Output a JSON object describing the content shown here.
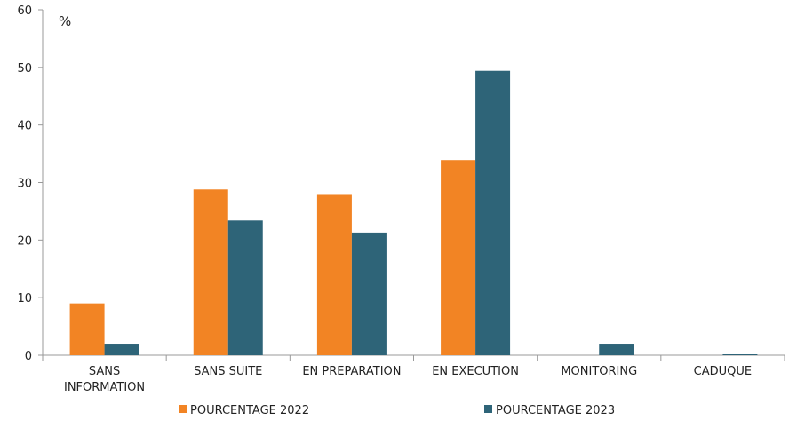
{
  "chart_data": {
    "type": "bar",
    "unit_label": "%",
    "categories": [
      [
        "SANS",
        "INFORMATION"
      ],
      [
        "SANS SUITE"
      ],
      [
        "EN PREPARATION"
      ],
      [
        "EN EXECUTION"
      ],
      [
        "MONITORING"
      ],
      [
        "CADUQUE"
      ]
    ],
    "series": [
      {
        "name": "POURCENTAGE 2022",
        "color": "#F28424",
        "values": [
          9,
          28.8,
          28,
          33.9,
          0,
          0
        ]
      },
      {
        "name": "POURCENTAGE 2023",
        "color": "#2E6478",
        "values": [
          2,
          23.4,
          21.3,
          49.4,
          2,
          0.3
        ]
      }
    ],
    "ylim": [
      0,
      60
    ],
    "yticks": [
      0,
      10,
      20,
      30,
      40,
      50,
      60
    ],
    "grid": false,
    "legend_position": "bottom"
  }
}
